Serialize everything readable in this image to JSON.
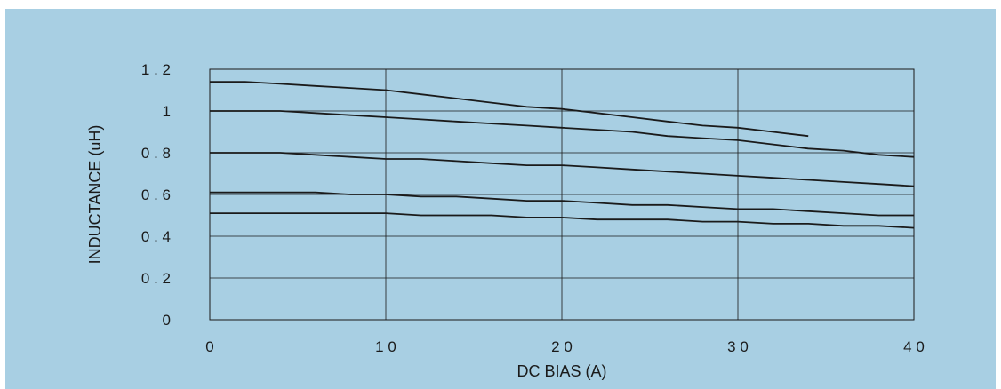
{
  "chart_data": {
    "type": "line",
    "xlabel": "DC BIAS (A)",
    "ylabel": "INDUCTANCE (uH)",
    "xlim": [
      0,
      40
    ],
    "ylim": [
      0,
      1.2
    ],
    "grid": true,
    "x_ticks": [
      {
        "value": 0,
        "label": "0"
      },
      {
        "value": 10,
        "label": "1 0"
      },
      {
        "value": 20,
        "label": "2 0"
      },
      {
        "value": 30,
        "label": "3 0"
      },
      {
        "value": 40,
        "label": "4 0"
      }
    ],
    "y_ticks": [
      {
        "value": 0,
        "label": "0"
      },
      {
        "value": 0.2,
        "label": "0 . 2"
      },
      {
        "value": 0.4,
        "label": "0 . 4"
      },
      {
        "value": 0.6,
        "label": "0 . 6"
      },
      {
        "value": 0.8,
        "label": "0 . 8"
      },
      {
        "value": 1.0,
        "label": "1"
      },
      {
        "value": 1.2,
        "label": "1 . 2"
      }
    ],
    "series": [
      {
        "x": [
          0,
          2,
          4,
          6,
          8,
          10,
          12,
          14,
          16,
          18,
          20,
          22,
          24,
          26,
          28,
          30,
          32,
          34
        ],
        "y": [
          1.14,
          1.14,
          1.13,
          1.12,
          1.11,
          1.1,
          1.08,
          1.06,
          1.04,
          1.02,
          1.01,
          0.99,
          0.97,
          0.95,
          0.93,
          0.92,
          0.9,
          0.88
        ]
      },
      {
        "x": [
          0,
          2,
          4,
          6,
          8,
          10,
          12,
          14,
          16,
          18,
          20,
          22,
          24,
          26,
          28,
          30,
          32,
          34,
          36,
          38,
          40
        ],
        "y": [
          1.0,
          1.0,
          1.0,
          0.99,
          0.98,
          0.97,
          0.96,
          0.95,
          0.94,
          0.93,
          0.92,
          0.91,
          0.9,
          0.88,
          0.87,
          0.86,
          0.84,
          0.82,
          0.81,
          0.79,
          0.78
        ]
      },
      {
        "x": [
          0,
          2,
          4,
          6,
          8,
          10,
          12,
          14,
          16,
          18,
          20,
          22,
          24,
          26,
          28,
          30,
          32,
          34,
          36,
          38,
          40
        ],
        "y": [
          0.8,
          0.8,
          0.8,
          0.79,
          0.78,
          0.77,
          0.77,
          0.76,
          0.75,
          0.74,
          0.74,
          0.73,
          0.72,
          0.71,
          0.7,
          0.69,
          0.68,
          0.67,
          0.66,
          0.65,
          0.64
        ]
      },
      {
        "x": [
          0,
          2,
          4,
          6,
          8,
          10,
          12,
          14,
          16,
          18,
          20,
          22,
          24,
          26,
          28,
          30,
          32,
          34,
          36,
          38,
          40
        ],
        "y": [
          0.61,
          0.61,
          0.61,
          0.61,
          0.6,
          0.6,
          0.59,
          0.59,
          0.58,
          0.57,
          0.57,
          0.56,
          0.55,
          0.55,
          0.54,
          0.53,
          0.53,
          0.52,
          0.51,
          0.5,
          0.5
        ]
      },
      {
        "x": [
          0,
          2,
          4,
          6,
          8,
          10,
          12,
          14,
          16,
          18,
          20,
          22,
          24,
          26,
          28,
          30,
          32,
          34,
          36,
          38,
          40
        ],
        "y": [
          0.51,
          0.51,
          0.51,
          0.51,
          0.51,
          0.51,
          0.5,
          0.5,
          0.5,
          0.49,
          0.49,
          0.48,
          0.48,
          0.48,
          0.47,
          0.47,
          0.46,
          0.46,
          0.45,
          0.45,
          0.44
        ]
      }
    ]
  },
  "colors": {
    "background": "#a8cfe3",
    "line": "#1a1a1a",
    "grid": "#1a1a1a"
  }
}
